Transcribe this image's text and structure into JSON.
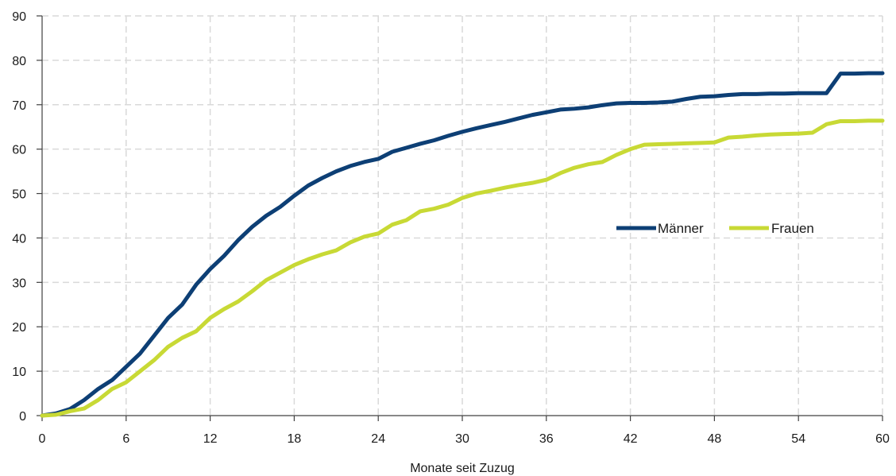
{
  "chart_data": {
    "type": "line",
    "title": "",
    "xlabel": "Monate seit Zuzug",
    "ylabel": "",
    "xlim": [
      0,
      60
    ],
    "ylim": [
      0,
      90
    ],
    "x_ticks": [
      0,
      6,
      12,
      18,
      24,
      30,
      36,
      42,
      48,
      54,
      60
    ],
    "y_ticks": [
      0,
      10,
      20,
      30,
      40,
      50,
      60,
      70,
      80,
      90
    ],
    "grid": "dashed, vertical and horizontal",
    "legend_position": "right-center",
    "x": [
      0,
      1,
      2,
      3,
      4,
      5,
      6,
      7,
      8,
      9,
      10,
      11,
      12,
      13,
      14,
      15,
      16,
      17,
      18,
      19,
      20,
      21,
      22,
      23,
      24,
      25,
      26,
      27,
      28,
      29,
      30,
      31,
      32,
      33,
      34,
      35,
      36,
      37,
      38,
      39,
      40,
      41,
      42,
      43,
      44,
      45,
      46,
      47,
      48,
      49,
      50,
      51,
      52,
      53,
      54,
      55,
      56,
      57,
      58,
      59,
      60
    ],
    "series": [
      {
        "name": "Männer",
        "color": "#0d3f75",
        "values": [
          0,
          0.5,
          1.5,
          3.5,
          6,
          8,
          11,
          14,
          18,
          22,
          25,
          29.5,
          33,
          36,
          39.5,
          42.5,
          45,
          47,
          49.5,
          51.8,
          53.5,
          55,
          56.2,
          57.1,
          57.8,
          59.4,
          60.3,
          61.2,
          62,
          63,
          63.9,
          64.7,
          65.4,
          66.1,
          66.9,
          67.7,
          68.3,
          68.9,
          69.1,
          69.4,
          69.9,
          70.3,
          70.4,
          70.4,
          70.5,
          70.7,
          71.3,
          71.8,
          71.9,
          72.2,
          72.4,
          72.4,
          72.5,
          72.5,
          72.6,
          72.6,
          72.6,
          77,
          77,
          77.1,
          77.1
        ]
      },
      {
        "name": "Frauen",
        "color": "#c8d935",
        "values": [
          0,
          0.2,
          1,
          1.6,
          3.5,
          6,
          7.5,
          10,
          12.5,
          15.5,
          17.5,
          19,
          22,
          24,
          25.7,
          28,
          30.5,
          32.2,
          33.9,
          35.2,
          36.3,
          37.2,
          39,
          40.3,
          41,
          43,
          44,
          46,
          46.6,
          47.5,
          49,
          50,
          50.6,
          51.3,
          51.9,
          52.4,
          53.1,
          54.6,
          55.8,
          56.6,
          57.1,
          58.7,
          60,
          61,
          61.1,
          61.2,
          61.3,
          61.4,
          61.5,
          62.6,
          62.8,
          63.1,
          63.3,
          63.4,
          63.5,
          63.7,
          65.6,
          66.3,
          66.3,
          66.4,
          66.4
        ]
      }
    ]
  }
}
